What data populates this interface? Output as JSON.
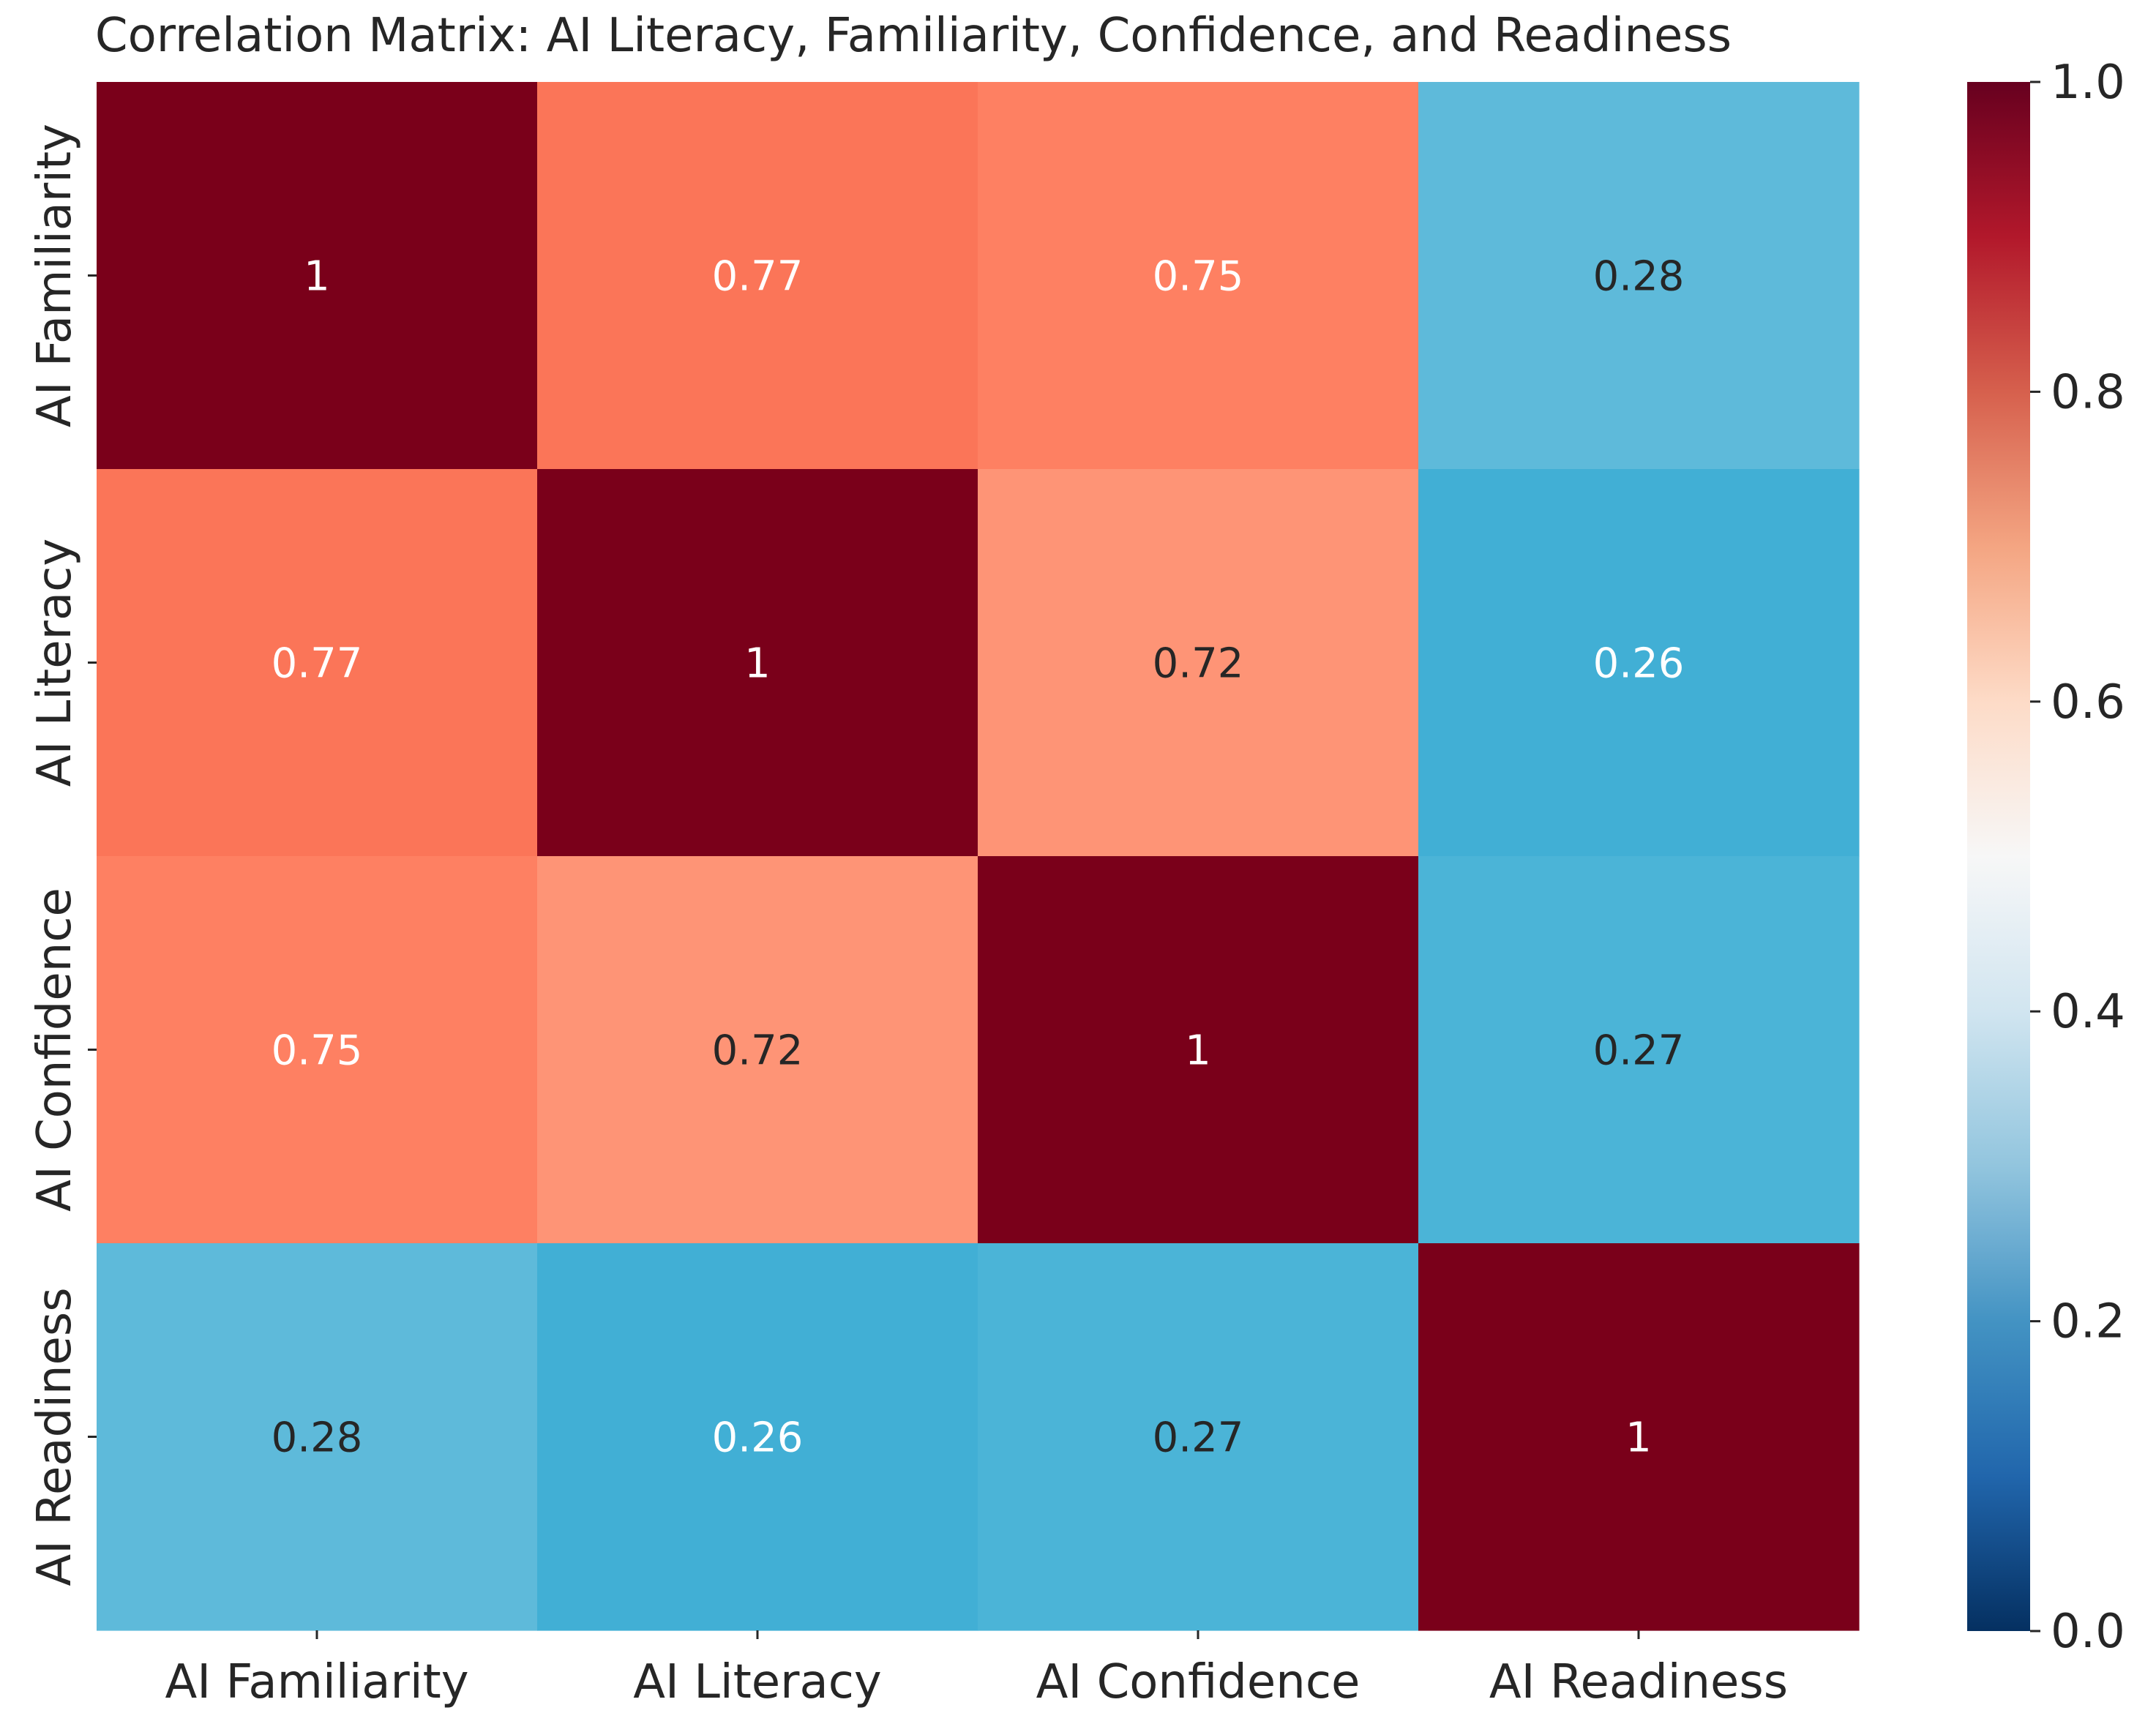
{
  "chart_data": {
    "type": "heatmap",
    "title": "Correlation Matrix: AI Literacy, Familiarity, Confidence, and Readiness",
    "xlabel": "",
    "ylabel": "",
    "rows": [
      "AI Familiarity",
      "AI Literacy",
      "AI Confidence",
      "AI Readiness"
    ],
    "columns": [
      "AI Familiarity",
      "AI Literacy",
      "AI Confidence",
      "AI Readiness"
    ],
    "values": [
      [
        1,
        0.77,
        0.75,
        0.28
      ],
      [
        0.77,
        1,
        0.72,
        0.26
      ],
      [
        0.75,
        0.72,
        1,
        0.27
      ],
      [
        0.28,
        0.26,
        0.27,
        1
      ]
    ],
    "cell_labels": [
      [
        "1",
        "0.77",
        "0.75",
        "0.28"
      ],
      [
        "0.77",
        "1",
        "0.72",
        "0.26"
      ],
      [
        "0.75",
        "0.72",
        "1",
        "0.27"
      ],
      [
        "0.28",
        "0.26",
        "0.27",
        "1"
      ]
    ],
    "colorbar": {
      "range": [
        0,
        1
      ],
      "ticks": [
        0.0,
        0.2,
        0.4,
        0.6,
        0.8,
        1.0
      ],
      "tick_labels": [
        "0.0",
        "0.2",
        "0.4",
        "0.6",
        "0.8",
        "1.0"
      ],
      "colormap": "RdBu_r",
      "position": "right"
    },
    "grid": false
  }
}
